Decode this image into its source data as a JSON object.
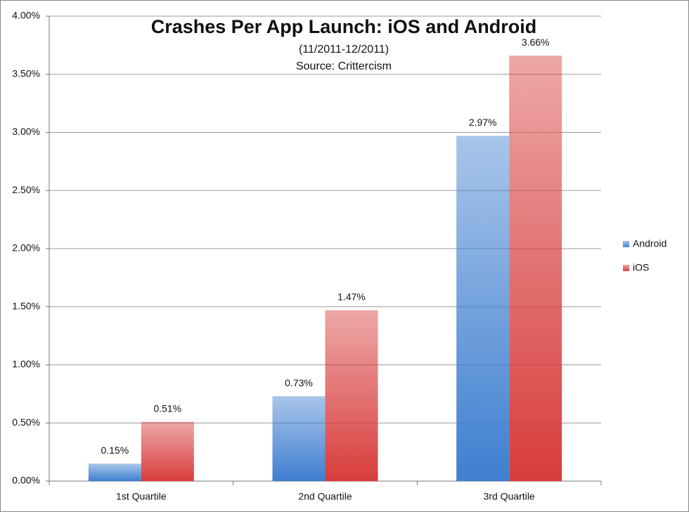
{
  "chart_data": {
    "type": "bar",
    "title": "Crashes Per App Launch: iOS and Android",
    "subtitle": [
      "(11/2011-12/2011)",
      "Source: Crittercism"
    ],
    "categories": [
      "1st Quartile",
      "2nd Quartile",
      "3rd Quartile"
    ],
    "series": [
      {
        "name": "Android",
        "color": "#3f7fd0",
        "values": [
          0.15,
          0.73,
          2.97
        ],
        "value_labels": [
          "0.15%",
          "0.73%",
          "2.97%"
        ]
      },
      {
        "name": "iOS",
        "color": "#d83c3c",
        "values": [
          0.51,
          1.47,
          3.66
        ],
        "value_labels": [
          "0.51%",
          "1.47%",
          "3.66%"
        ]
      }
    ],
    "ylim": [
      0,
      4
    ],
    "yticks": [
      {
        "value": 0,
        "label": "0.00%"
      },
      {
        "value": 0.5,
        "label": "0.50%"
      },
      {
        "value": 1,
        "label": "1.00%"
      },
      {
        "value": 1.5,
        "label": "1.50%"
      },
      {
        "value": 2,
        "label": "2.00%"
      },
      {
        "value": 2.5,
        "label": "2.50%"
      },
      {
        "value": 3,
        "label": "3.00%"
      },
      {
        "value": 3.5,
        "label": "3.50%"
      },
      {
        "value": 4,
        "label": "4.00%"
      }
    ],
    "grid": true,
    "legend": "right"
  }
}
